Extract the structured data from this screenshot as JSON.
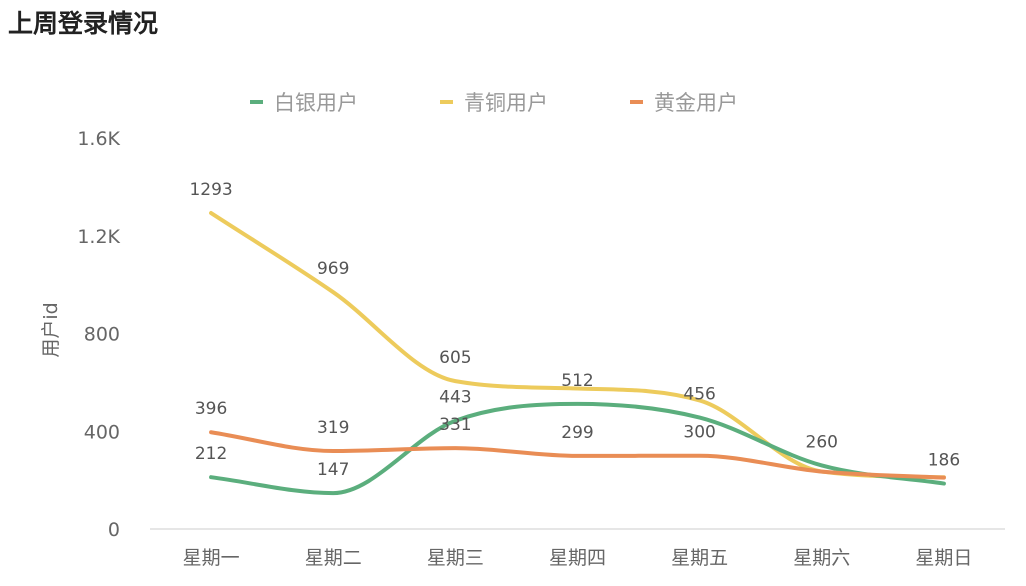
{
  "title": "上周登录情况",
  "chart_data": {
    "type": "line",
    "title": "上周登录情况",
    "xlabel": "",
    "ylabel": "用户id",
    "categories": [
      "星期一",
      "星期二",
      "星期三",
      "星期四",
      "星期五",
      "星期六",
      "星期日"
    ],
    "yticks": [
      {
        "v": 0,
        "label": "0"
      },
      {
        "v": 400,
        "label": "400"
      },
      {
        "v": 800,
        "label": "800"
      },
      {
        "v": 1200,
        "label": "1.2K"
      },
      {
        "v": 1600,
        "label": "1.6K"
      }
    ],
    "ylim": [
      0,
      1600
    ],
    "grid": false,
    "legend_position": "top-center",
    "series": [
      {
        "name": "白银用户",
        "color": "#5BAE7D",
        "values": [
          212,
          147,
          443,
          512,
          456,
          260,
          186
        ],
        "labels": [
          "212",
          "147",
          "443",
          "512",
          "456",
          "260",
          "186"
        ]
      },
      {
        "name": "青铜用户",
        "color": "#EDCB5C",
        "values": [
          1293,
          969,
          605,
          575,
          526,
          235,
          212
        ],
        "labels": [
          "1293",
          "969",
          "605",
          null,
          null,
          null,
          null
        ]
      },
      {
        "name": "黄金用户",
        "color": "#E98D55",
        "values": [
          396,
          319,
          331,
          299,
          300,
          235,
          210
        ],
        "labels": [
          "396",
          "319",
          "331",
          "299",
          "300",
          null,
          null
        ]
      }
    ]
  }
}
